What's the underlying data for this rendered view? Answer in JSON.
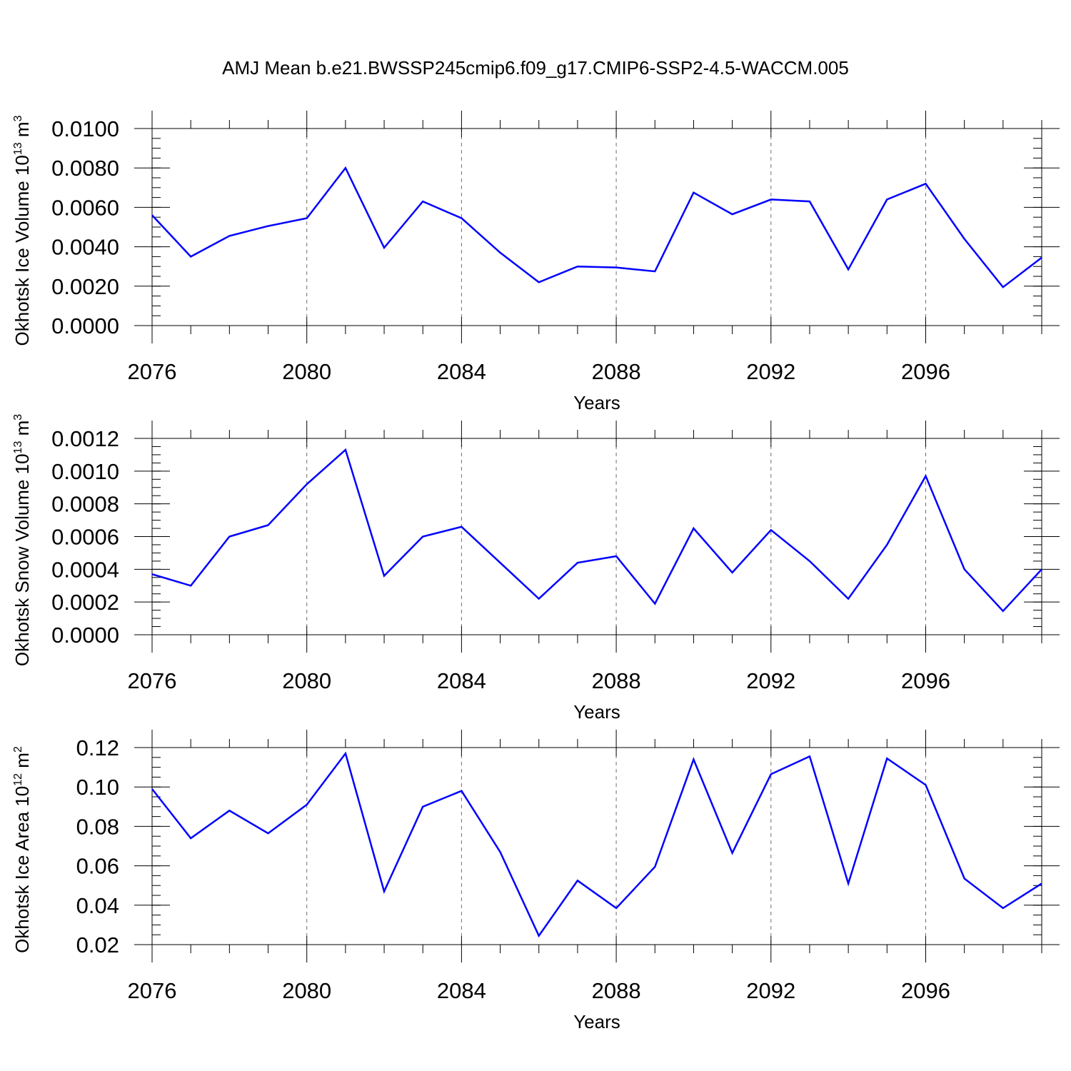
{
  "figure": {
    "title": "AMJ Mean b.e21.BWSSP245cmip6.f09_g17.CMIP6-SSP2-4.5-WACCM.005"
  },
  "chart_data": [
    {
      "type": "line",
      "ylabel": "Okhotsk Ice Volume 10",
      "ylabel_exp": "13",
      "ylabel_unit": " m",
      "ylabel_unit_exp": "3",
      "xlabel": "Years",
      "xlim": [
        2076,
        2099
      ],
      "ylim": [
        0,
        0.01
      ],
      "x_ticks": [
        2076,
        2080,
        2084,
        2088,
        2092,
        2096
      ],
      "x_tick_labels": [
        "2076",
        "2080",
        "2084",
        "2088",
        "2092",
        "2096"
      ],
      "y_ticks": [
        0,
        0.002,
        0.004,
        0.006,
        0.008,
        0.01
      ],
      "y_tick_labels": [
        "0.0000",
        "0.0020",
        "0.0040",
        "0.0060",
        "0.0080",
        "0.0100"
      ],
      "y_minor_step": 0.0005,
      "grid": "vertical dashed at major x ticks",
      "line_color": "#0000ff",
      "x": [
        2076,
        2077,
        2078,
        2079,
        2080,
        2081,
        2082,
        2083,
        2084,
        2085,
        2086,
        2087,
        2088,
        2089,
        2090,
        2091,
        2092,
        2093,
        2094,
        2095,
        2096,
        2097,
        2098,
        2099
      ],
      "values": [
        0.0056,
        0.0035,
        0.00455,
        0.00505,
        0.00545,
        0.008,
        0.00395,
        0.0063,
        0.00545,
        0.0037,
        0.0022,
        0.003,
        0.00295,
        0.00275,
        0.00675,
        0.00565,
        0.0064,
        0.0063,
        0.00285,
        0.0064,
        0.0072,
        0.0044,
        0.00195,
        0.00345
      ]
    },
    {
      "type": "line",
      "ylabel": "Okhotsk Snow Volume 10",
      "ylabel_exp": "13",
      "ylabel_unit": " m",
      "ylabel_unit_exp": "3",
      "xlabel": "Years",
      "xlim": [
        2076,
        2099
      ],
      "ylim": [
        0,
        0.0012
      ],
      "x_ticks": [
        2076,
        2080,
        2084,
        2088,
        2092,
        2096
      ],
      "x_tick_labels": [
        "2076",
        "2080",
        "2084",
        "2088",
        "2092",
        "2096"
      ],
      "y_ticks": [
        0,
        0.0002,
        0.0004,
        0.0006,
        0.0008,
        0.001,
        0.0012
      ],
      "y_tick_labels": [
        "0.0000",
        "0.0002",
        "0.0004",
        "0.0006",
        "0.0008",
        "0.0010",
        "0.0012"
      ],
      "y_minor_step": 5e-05,
      "grid": "vertical dashed at major x ticks",
      "line_color": "#0000ff",
      "x": [
        2076,
        2077,
        2078,
        2079,
        2080,
        2081,
        2082,
        2083,
        2084,
        2085,
        2086,
        2087,
        2088,
        2089,
        2090,
        2091,
        2092,
        2093,
        2094,
        2095,
        2096,
        2097,
        2098,
        2099
      ],
      "values": [
        0.00037,
        0.0003,
        0.0006,
        0.00067,
        0.00092,
        0.00113,
        0.00036,
        0.0006,
        0.00066,
        0.00044,
        0.00022,
        0.00044,
        0.00048,
        0.00019,
        0.00065,
        0.00038,
        0.00064,
        0.00045,
        0.00022,
        0.00055,
        0.00097,
        0.0004,
        0.000145,
        0.0004
      ]
    },
    {
      "type": "line",
      "ylabel": "Okhotsk Ice Area 10",
      "ylabel_exp": "12",
      "ylabel_unit": " m",
      "ylabel_unit_exp": "2",
      "xlabel": "Years",
      "xlim": [
        2076,
        2099
      ],
      "ylim": [
        0.02,
        0.12
      ],
      "x_ticks": [
        2076,
        2080,
        2084,
        2088,
        2092,
        2096
      ],
      "x_tick_labels": [
        "2076",
        "2080",
        "2084",
        "2088",
        "2092",
        "2096"
      ],
      "y_ticks": [
        0.02,
        0.04,
        0.06,
        0.08,
        0.1,
        0.12
      ],
      "y_tick_labels": [
        "0.02",
        "0.04",
        "0.06",
        "0.08",
        "0.10",
        "0.12"
      ],
      "y_minor_step": 0.005,
      "grid": "vertical dashed at major x ticks",
      "line_color": "#0000ff",
      "x": [
        2076,
        2077,
        2078,
        2079,
        2080,
        2081,
        2082,
        2083,
        2084,
        2085,
        2086,
        2087,
        2088,
        2089,
        2090,
        2091,
        2092,
        2093,
        2094,
        2095,
        2096,
        2097,
        2098,
        2099
      ],
      "values": [
        0.099,
        0.074,
        0.088,
        0.0765,
        0.091,
        0.117,
        0.047,
        0.09,
        0.098,
        0.067,
        0.0245,
        0.0525,
        0.0385,
        0.0595,
        0.114,
        0.0665,
        0.1065,
        0.1155,
        0.051,
        0.1145,
        0.101,
        0.0535,
        0.0385,
        0.051
      ]
    }
  ]
}
